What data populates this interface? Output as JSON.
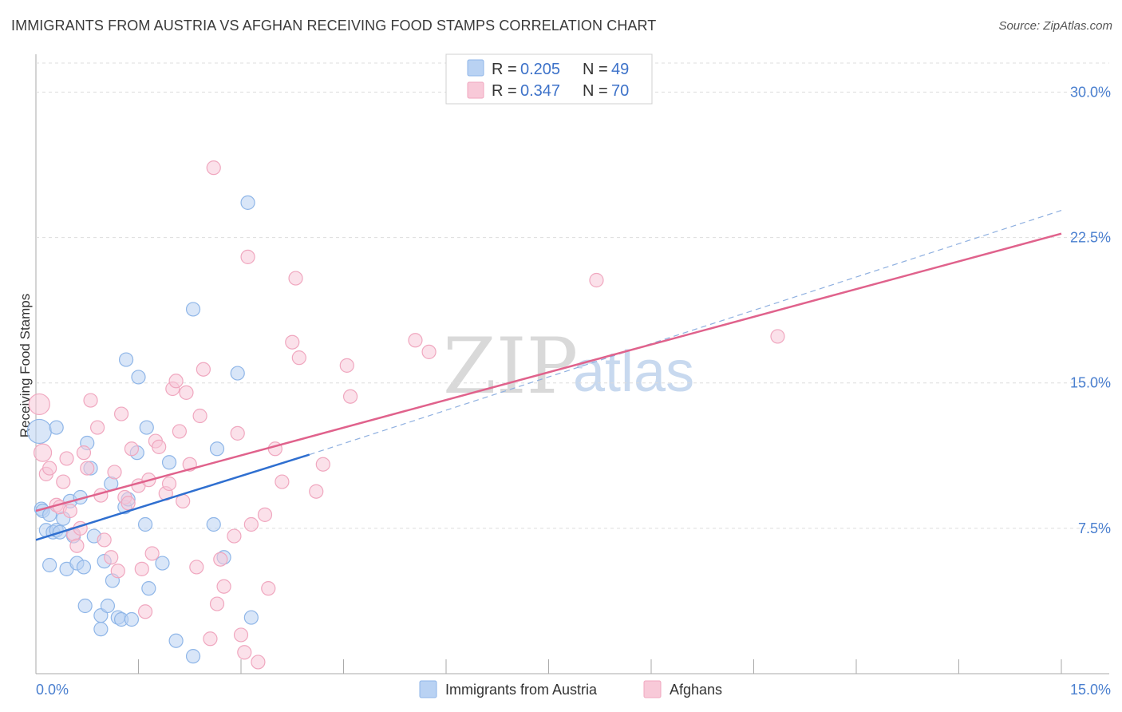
{
  "title": "IMMIGRANTS FROM AUSTRIA VS AFGHAN RECEIVING FOOD STAMPS CORRELATION CHART",
  "source": "Source: ZipAtlas.com",
  "watermark": {
    "zip": "ZIP",
    "atlas": "atlas"
  },
  "chart_data": {
    "type": "scatter",
    "title": "IMMIGRANTS FROM AUSTRIA VS AFGHAN RECEIVING FOOD STAMPS CORRELATION CHART",
    "xlabel": "",
    "ylabel": "Receiving Food Stamps",
    "xlim": [
      0,
      15
    ],
    "ylim": [
      0,
      31.5
    ],
    "x_tick_labels": [
      "0.0%",
      "15.0%"
    ],
    "y_ticks": [
      7.5,
      15.0,
      22.5,
      30.0
    ],
    "y_tick_labels": [
      "7.5%",
      "15.0%",
      "22.5%",
      "30.0%"
    ],
    "legend": {
      "entries": [
        {
          "r_label": "R =",
          "r_value": "0.205",
          "n_label": "N =",
          "n_value": "49"
        },
        {
          "r_label": "R =",
          "r_value": "0.347",
          "n_label": "N =",
          "n_value": "70"
        }
      ]
    },
    "series": [
      {
        "name": "Immigrants from Austria",
        "color": "#8fb6e8",
        "fill": "#b9d2f3",
        "trend_color": "#2f6fd0",
        "trend": {
          "x0": 0.0,
          "y0": 6.9,
          "x1": 4.0,
          "y1": 11.3,
          "dash_to_x": 15.0,
          "dash_to_y": 23.9
        },
        "points": [
          [
            0.05,
            12.5
          ],
          [
            0.08,
            8.5
          ],
          [
            0.1,
            8.4
          ],
          [
            0.15,
            7.4
          ],
          [
            0.2,
            5.6
          ],
          [
            0.2,
            8.2
          ],
          [
            0.25,
            7.3
          ],
          [
            0.3,
            12.7
          ],
          [
            0.3,
            7.4
          ],
          [
            0.35,
            7.3
          ],
          [
            0.4,
            8.0
          ],
          [
            0.45,
            5.4
          ],
          [
            0.5,
            8.9
          ],
          [
            0.55,
            7.1
          ],
          [
            0.6,
            5.7
          ],
          [
            0.65,
            9.1
          ],
          [
            0.7,
            5.5
          ],
          [
            0.72,
            3.5
          ],
          [
            0.75,
            11.9
          ],
          [
            0.8,
            10.6
          ],
          [
            0.85,
            7.1
          ],
          [
            0.95,
            3.0
          ],
          [
            0.95,
            2.3
          ],
          [
            1.0,
            5.8
          ],
          [
            1.05,
            3.5
          ],
          [
            1.1,
            9.8
          ],
          [
            1.12,
            4.8
          ],
          [
            1.2,
            2.9
          ],
          [
            1.25,
            2.8
          ],
          [
            1.3,
            8.6
          ],
          [
            1.32,
            16.2
          ],
          [
            1.35,
            9.0
          ],
          [
            1.4,
            2.8
          ],
          [
            1.48,
            11.4
          ],
          [
            1.5,
            15.3
          ],
          [
            1.6,
            7.7
          ],
          [
            1.62,
            12.7
          ],
          [
            1.65,
            4.4
          ],
          [
            1.85,
            5.7
          ],
          [
            1.95,
            10.9
          ],
          [
            2.05,
            1.7
          ],
          [
            2.3,
            0.9
          ],
          [
            2.3,
            18.8
          ],
          [
            2.6,
            7.7
          ],
          [
            2.65,
            11.6
          ],
          [
            2.75,
            6.0
          ],
          [
            2.95,
            15.5
          ],
          [
            3.1,
            24.3
          ],
          [
            3.15,
            2.9
          ]
        ]
      },
      {
        "name": "Afghans",
        "color": "#f0a7bf",
        "fill": "#f8c9d8",
        "trend_color": "#e0628c",
        "trend": {
          "x0": 0.0,
          "y0": 8.4,
          "x1": 15.0,
          "y1": 22.7
        },
        "points": [
          [
            0.05,
            13.9
          ],
          [
            0.1,
            11.4
          ],
          [
            0.15,
            10.3
          ],
          [
            0.2,
            10.6
          ],
          [
            0.3,
            8.7
          ],
          [
            0.35,
            8.6
          ],
          [
            0.4,
            9.9
          ],
          [
            0.45,
            11.1
          ],
          [
            0.5,
            8.4
          ],
          [
            0.55,
            7.2
          ],
          [
            0.6,
            6.6
          ],
          [
            0.65,
            7.5
          ],
          [
            0.7,
            11.4
          ],
          [
            0.75,
            10.6
          ],
          [
            0.8,
            14.1
          ],
          [
            0.9,
            12.7
          ],
          [
            0.95,
            9.2
          ],
          [
            1.0,
            6.9
          ],
          [
            1.1,
            6.0
          ],
          [
            1.15,
            10.4
          ],
          [
            1.2,
            5.3
          ],
          [
            1.25,
            13.4
          ],
          [
            1.3,
            9.1
          ],
          [
            1.35,
            8.8
          ],
          [
            1.4,
            11.6
          ],
          [
            1.5,
            9.7
          ],
          [
            1.55,
            5.4
          ],
          [
            1.6,
            3.2
          ],
          [
            1.65,
            10.0
          ],
          [
            1.7,
            6.2
          ],
          [
            1.75,
            12.0
          ],
          [
            1.8,
            11.7
          ],
          [
            1.9,
            9.3
          ],
          [
            1.95,
            9.8
          ],
          [
            2.0,
            14.7
          ],
          [
            2.05,
            15.1
          ],
          [
            2.1,
            12.5
          ],
          [
            2.15,
            8.9
          ],
          [
            2.2,
            14.5
          ],
          [
            2.25,
            10.8
          ],
          [
            2.35,
            5.5
          ],
          [
            2.4,
            13.3
          ],
          [
            2.45,
            15.7
          ],
          [
            2.55,
            1.8
          ],
          [
            2.6,
            26.1
          ],
          [
            2.65,
            3.6
          ],
          [
            2.7,
            5.9
          ],
          [
            2.75,
            4.5
          ],
          [
            2.9,
            7.1
          ],
          [
            2.95,
            12.4
          ],
          [
            3.0,
            2.0
          ],
          [
            3.05,
            1.1
          ],
          [
            3.1,
            21.5
          ],
          [
            3.15,
            7.7
          ],
          [
            3.25,
            0.6
          ],
          [
            3.35,
            8.2
          ],
          [
            3.4,
            4.4
          ],
          [
            3.5,
            11.6
          ],
          [
            3.6,
            9.9
          ],
          [
            3.75,
            17.1
          ],
          [
            3.8,
            20.4
          ],
          [
            3.85,
            16.3
          ],
          [
            4.1,
            9.4
          ],
          [
            4.2,
            10.8
          ],
          [
            4.55,
            15.9
          ],
          [
            4.6,
            14.3
          ],
          [
            5.55,
            17.2
          ],
          [
            5.75,
            16.6
          ],
          [
            8.2,
            20.3
          ],
          [
            10.85,
            17.4
          ]
        ]
      }
    ]
  }
}
